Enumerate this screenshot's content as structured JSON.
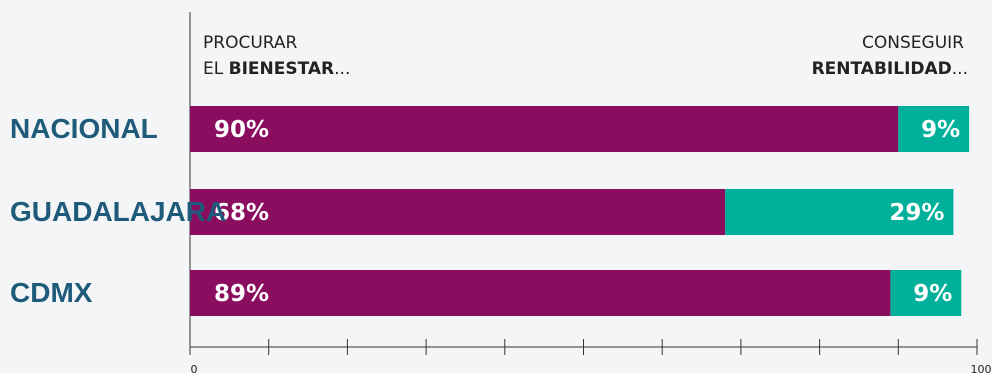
{
  "chart_data": {
    "type": "bar",
    "orientation": "horizontal",
    "stacked": true,
    "categories": [
      "NACIONAL",
      "GUADALAJARA",
      "CDMX"
    ],
    "series": [
      {
        "values": [
          90,
          68,
          89
        ],
        "labels": [
          "90%",
          "68%",
          "89%"
        ],
        "color": "#8b0d60"
      },
      {
        "values": [
          9,
          29,
          9
        ],
        "labels": [
          "9%",
          "29%",
          "9%"
        ],
        "color": "#00b09a"
      }
    ],
    "left_header": {
      "line1": "PROCURAR",
      "line2_prefix": "EL ",
      "line2_bold": "BIENESTAR",
      "line2_suffix": "..."
    },
    "right_header": {
      "line1": "CONSEGUIR",
      "line2_bold": "RENTABILIDAD",
      "line2_suffix": "..."
    },
    "xlim": [
      0,
      100
    ],
    "x_tick_labels": [
      "0",
      "100"
    ],
    "colors": {
      "label": "#1e5a79",
      "axis": "#333333"
    }
  }
}
